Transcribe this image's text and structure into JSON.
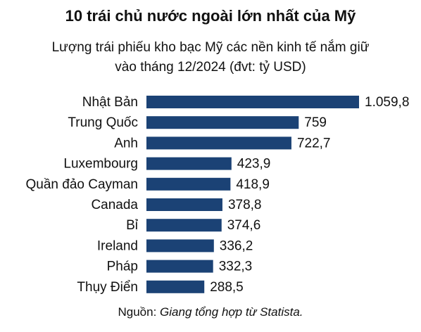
{
  "chart_data": {
    "type": "bar",
    "orientation": "horizontal",
    "title": "10 trái chủ nước ngoài lớn nhất của Mỹ",
    "subtitle": [
      "Lượng trái phiếu kho bạc Mỹ các nền kinh tế nắm giữ",
      "vào tháng 12/2024 (đvt: tỷ USD)"
    ],
    "categories": [
      "Nhật Bản",
      "Trung Quốc",
      "Anh",
      "Luxembourg",
      "Quần đảo Cayman",
      "Canada",
      "Bỉ",
      "Ireland",
      "Pháp",
      "Thụy Điển"
    ],
    "values": [
      1059.8,
      759,
      722.7,
      423.9,
      418.9,
      378.8,
      374.6,
      336.2,
      332.3,
      288.5
    ],
    "value_labels": [
      "1.059,8",
      "759",
      "722,7",
      "423,9",
      "418,9",
      "378,8",
      "374,6",
      "336,2",
      "332,3",
      "288,5"
    ],
    "bar_color": "#1b4275",
    "grid": false,
    "legend": "none"
  },
  "source": {
    "prefix": "Nguồn: ",
    "text": "Giang tổng hợp từ Statista."
  }
}
